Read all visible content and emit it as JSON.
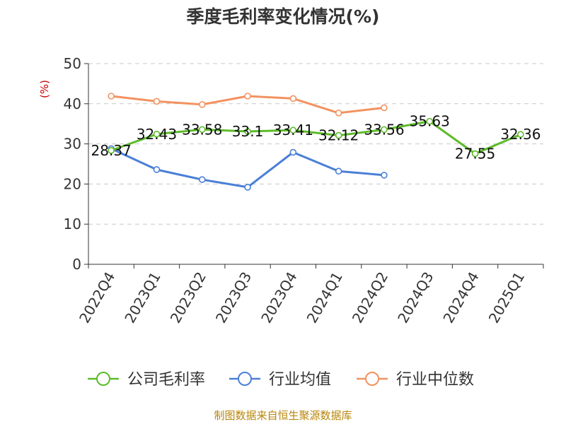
{
  "chart_data": {
    "type": "line",
    "title": "季度毛利率变化情况(%)",
    "ylabel": "(%)",
    "xlabel": "",
    "ylim": [
      0,
      50
    ],
    "yticks": [
      0,
      10,
      20,
      30,
      40,
      50
    ],
    "categories": [
      "2022Q4",
      "2023Q1",
      "2023Q2",
      "2023Q3",
      "2023Q4",
      "2024Q1",
      "2024Q2",
      "2024Q3",
      "2024Q4",
      "2025Q1"
    ],
    "grid": true,
    "legend_position": "bottom",
    "series": [
      {
        "name": "公司毛利率",
        "color": "#5dbb2a",
        "show_labels": true,
        "values": [
          28.37,
          32.43,
          33.58,
          33.1,
          33.41,
          32.12,
          33.56,
          35.63,
          27.55,
          32.36
        ],
        "labels": [
          "28.37",
          "32.43",
          "33.58",
          "33.1",
          "33.41",
          "32.12",
          "33.56",
          "35.63",
          "27.55",
          "32.36"
        ]
      },
      {
        "name": "行业均值",
        "color": "#4a7fd6",
        "show_labels": false,
        "values": [
          28.8,
          23.6,
          21.1,
          19.2,
          27.9,
          23.2,
          22.2,
          null,
          null,
          null
        ]
      },
      {
        "name": "行业中位数",
        "color": "#f39260",
        "show_labels": false,
        "values": [
          41.9,
          40.6,
          39.8,
          41.9,
          41.3,
          37.7,
          39.0,
          null,
          null,
          null
        ]
      }
    ]
  },
  "source": "制图数据来自恒生聚源数据库"
}
